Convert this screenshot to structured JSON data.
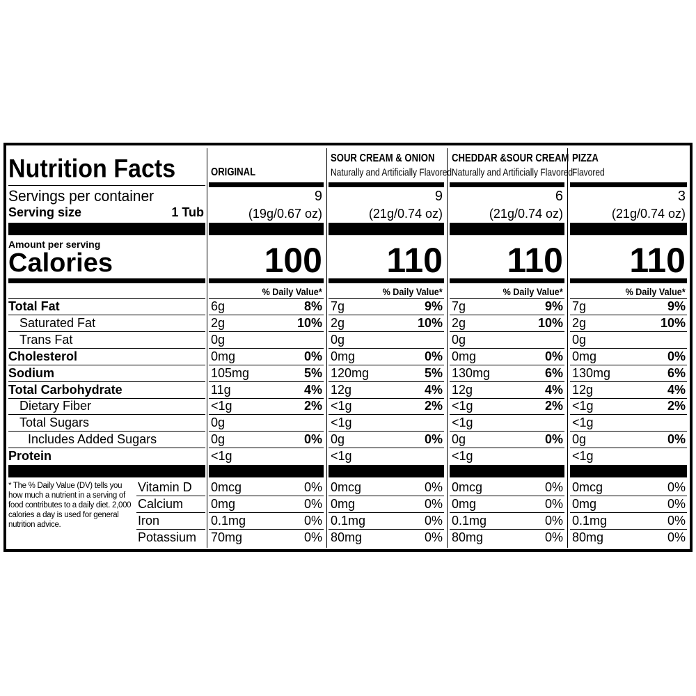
{
  "title": "Nutrition Facts",
  "servings_label": "Servings per container",
  "serving_size_label": "Serving size",
  "serving_size": "1 Tub",
  "amount_per_serving": "Amount per serving",
  "calories_label": "Calories",
  "nutrients": [
    "Total Fat",
    "Saturated Fat",
    "Trans Fat",
    "Cholesterol",
    "Sodium",
    "Total Carbohydrate",
    "Dietary Fiber",
    "Total Sugars",
    "Includes Added Sugars",
    "Protein"
  ],
  "vitamins": [
    "Vitamin D",
    "Calcium",
    "Iron",
    "Potassium"
  ],
  "footnote": "* The % Daily Value (DV) tells you how much a nutrient in a serving of food contributes to a daily diet. 2,000 calories a day is used for general nutrition advice.",
  "columns": [
    {
      "name": "ORIGINAL",
      "servings": 9,
      "serving_weight": "(19g/0.67 oz)",
      "calories": 100,
      "dv_header": "% Daily Value*",
      "nutrients": [
        [
          "6g",
          "8%"
        ],
        [
          "2g",
          "10%"
        ],
        [
          "0g"
        ],
        [
          "0mg",
          "0%"
        ],
        [
          "105mg",
          "5%"
        ],
        [
          "11g",
          "4%"
        ],
        [
          "<1g",
          "2%"
        ],
        [
          "0g"
        ],
        [
          "0g",
          "0%"
        ],
        [
          "<1g"
        ]
      ],
      "vitamins": [
        [
          "0mcg",
          "0%"
        ],
        [
          "0mg",
          "0%"
        ],
        [
          "0.1mg",
          "0%"
        ],
        [
          "70mg",
          "0%"
        ]
      ]
    },
    {
      "name": "SOUR CREAM & ONION",
      "subtitle": "Naturally and Artificially Flavored",
      "servings": 9,
      "serving_weight": "(21g/0.74 oz)",
      "calories": 110,
      "dv_header": "% Daily Value*",
      "nutrients": [
        [
          "7g",
          "9%"
        ],
        [
          "2g",
          "10%"
        ],
        [
          "0g"
        ],
        [
          "0mg",
          "0%"
        ],
        [
          "120mg",
          "5%"
        ],
        [
          "12g",
          "4%"
        ],
        [
          "<1g",
          "2%"
        ],
        [
          "<1g"
        ],
        [
          "0g",
          "0%"
        ],
        [
          "<1g"
        ]
      ],
      "vitamins": [
        [
          "0mcg",
          "0%"
        ],
        [
          "0mg",
          "0%"
        ],
        [
          "0.1mg",
          "0%"
        ],
        [
          "80mg",
          "0%"
        ]
      ]
    },
    {
      "name": "CHEDDAR &SOUR CREAM",
      "subtitle": "Naturally and Artificially Flavored",
      "servings": 6,
      "serving_weight": "(21g/0.74 oz)",
      "calories": 110,
      "dv_header": "% Daily Value*",
      "nutrients": [
        [
          "7g",
          "9%"
        ],
        [
          "2g",
          "10%"
        ],
        [
          "0g"
        ],
        [
          "0mg",
          "0%"
        ],
        [
          "130mg",
          "6%"
        ],
        [
          "12g",
          "4%"
        ],
        [
          "<1g",
          "2%"
        ],
        [
          "<1g"
        ],
        [
          "0g",
          "0%"
        ],
        [
          "<1g"
        ]
      ],
      "vitamins": [
        [
          "0mcg",
          "0%"
        ],
        [
          "0mg",
          "0%"
        ],
        [
          "0.1mg",
          "0%"
        ],
        [
          "80mg",
          "0%"
        ]
      ]
    },
    {
      "name": "PIZZA",
      "subtitle": "Flavored",
      "servings": 3,
      "serving_weight": "(21g/0.74 oz)",
      "calories": 110,
      "dv_header": "% Daily Value*",
      "nutrients": [
        [
          "7g",
          "9%"
        ],
        [
          "2g",
          "10%"
        ],
        [
          "0g"
        ],
        [
          "0mg",
          "0%"
        ],
        [
          "130mg",
          "6%"
        ],
        [
          "12g",
          "4%"
        ],
        [
          "<1g",
          "2%"
        ],
        [
          "<1g"
        ],
        [
          "0g",
          "0%"
        ],
        [
          "<1g"
        ]
      ],
      "vitamins": [
        [
          "0mcg",
          "0%"
        ],
        [
          "0mg",
          "0%"
        ],
        [
          "0.1mg",
          "0%"
        ],
        [
          "80mg",
          "0%"
        ]
      ]
    }
  ]
}
